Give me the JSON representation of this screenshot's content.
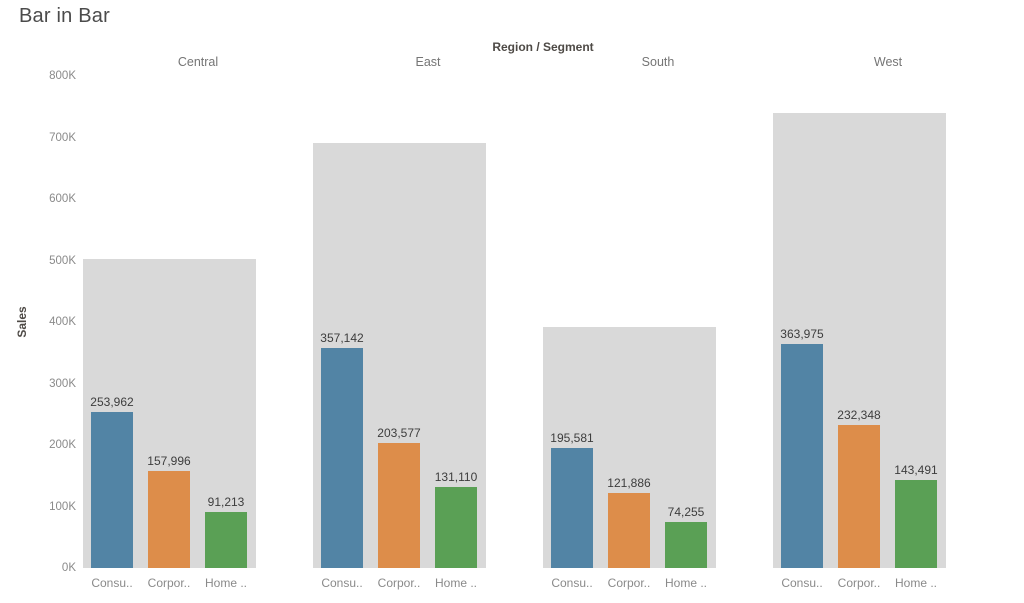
{
  "title": "Bar in Bar",
  "chart_data": {
    "type": "bar",
    "variant": "bar-in-bar",
    "title": "Bar in Bar",
    "column_header": "Region / Segment",
    "ylabel": "Sales",
    "ylim": [
      0,
      800000
    ],
    "grid": false,
    "legend_position": "none",
    "yticks": [
      {
        "label": "0K",
        "value": 0
      },
      {
        "label": "100K",
        "value": 100000
      },
      {
        "label": "200K",
        "value": 200000
      },
      {
        "label": "300K",
        "value": 300000
      },
      {
        "label": "400K",
        "value": 400000
      },
      {
        "label": "500K",
        "value": 500000
      },
      {
        "label": "600K",
        "value": 600000
      },
      {
        "label": "700K",
        "value": 700000
      },
      {
        "label": "800K",
        "value": 800000
      }
    ],
    "colors": {
      "segment_bars": [
        "#5284a5",
        "#dd8d4a",
        "#5aa055"
      ],
      "region_total_bar": "#d9d9d9"
    },
    "regions": [
      {
        "name": "Central",
        "total": 503171,
        "segments": [
          {
            "label": "Consu..",
            "value": 253962,
            "value_label": "253,962"
          },
          {
            "label": "Corpor..",
            "value": 157996,
            "value_label": "157,996"
          },
          {
            "label": "Home ..",
            "value": 91213,
            "value_label": "91,213"
          }
        ]
      },
      {
        "name": "East",
        "total": 691829,
        "segments": [
          {
            "label": "Consu..",
            "value": 357142,
            "value_label": "357,142"
          },
          {
            "label": "Corpor..",
            "value": 203577,
            "value_label": "203,577"
          },
          {
            "label": "Home ..",
            "value": 131110,
            "value_label": "131,110"
          }
        ]
      },
      {
        "name": "South",
        "total": 391722,
        "segments": [
          {
            "label": "Consu..",
            "value": 195581,
            "value_label": "195,581"
          },
          {
            "label": "Corpor..",
            "value": 121886,
            "value_label": "121,886"
          },
          {
            "label": "Home ..",
            "value": 74255,
            "value_label": "74,255"
          }
        ]
      },
      {
        "name": "West",
        "total": 739814,
        "segments": [
          {
            "label": "Consu..",
            "value": 363975,
            "value_label": "363,975"
          },
          {
            "label": "Corpor..",
            "value": 232348,
            "value_label": "232,348"
          },
          {
            "label": "Home ..",
            "value": 143491,
            "value_label": "143,491"
          }
        ]
      }
    ]
  }
}
